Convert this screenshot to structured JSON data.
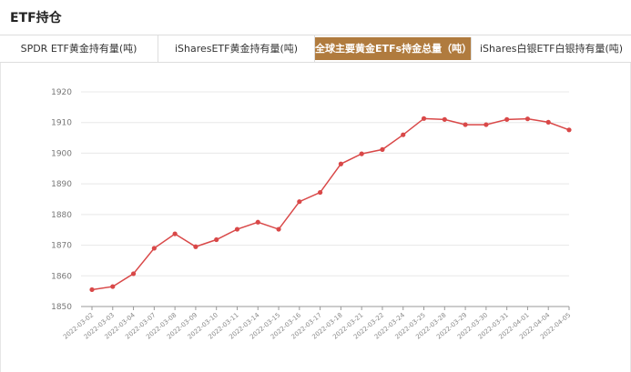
{
  "header": {
    "title": "ETF持仓"
  },
  "tabs": [
    {
      "label": "SPDR ETF黄金持有量(吨)",
      "active": false
    },
    {
      "label": "iSharesETF黄金持有量(吨)",
      "active": false
    },
    {
      "label": "全球主要黄金ETFs持金总量（吨）",
      "active": true
    },
    {
      "label": "iShares白银ETF白银持有量(吨)",
      "active": false
    }
  ],
  "colors": {
    "accent": "#b07b3e",
    "line": "#d94848"
  },
  "chart_data": {
    "type": "line",
    "title": "",
    "xlabel": "",
    "ylabel": "",
    "ylim": [
      1850,
      1920
    ],
    "yticks": [
      1850,
      1860,
      1870,
      1880,
      1890,
      1900,
      1910,
      1920
    ],
    "grid": true,
    "categories": [
      "2022-03-02",
      "2022-03-03",
      "2022-03-04",
      "2022-03-07",
      "2022-03-08",
      "2022-03-09",
      "2022-03-10",
      "2022-03-11",
      "2022-03-14",
      "2022-03-15",
      "2022-03-16",
      "2022-03-17",
      "2022-03-18",
      "2022-03-21",
      "2022-03-22",
      "2022-03-24",
      "2022-03-25",
      "2022-03-28",
      "2022-03-29",
      "2022-03-30",
      "2022-03-31",
      "2022-04-01",
      "2022-04-04",
      "2022-04-05"
    ],
    "values": [
      1855.5,
      1856.5,
      1860.7,
      1869.0,
      1873.7,
      1869.5,
      1871.8,
      1875.2,
      1877.5,
      1875.2,
      1884.2,
      1887.2,
      1896.5,
      1899.8,
      1901.2,
      1906.0,
      1911.3,
      1911.0,
      1909.3,
      1909.3,
      1911.0,
      1911.2,
      1910.1,
      1907.6
    ]
  }
}
